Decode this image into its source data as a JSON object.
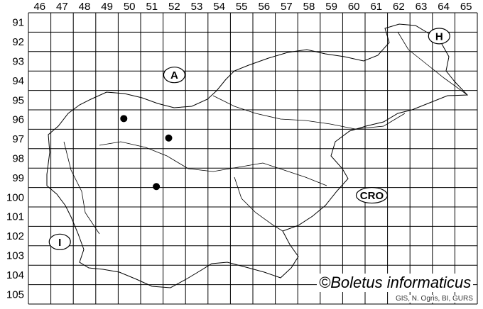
{
  "map": {
    "columns": [
      "46",
      "47",
      "48",
      "49",
      "50",
      "51",
      "52",
      "53",
      "54",
      "55",
      "56",
      "57",
      "58",
      "59",
      "60",
      "61",
      "62",
      "63",
      "64",
      "65"
    ],
    "rows": [
      "91",
      "92",
      "93",
      "94",
      "95",
      "96",
      "97",
      "98",
      "99",
      "100",
      "101",
      "102",
      "103",
      "104",
      "105"
    ],
    "country_labels": [
      {
        "text": "A",
        "col": 52.5,
        "row": 94.2
      },
      {
        "text": "H",
        "col": 64.3,
        "row": 92.2
      },
      {
        "text": "CRO",
        "col": 61.3,
        "row": 100.4
      },
      {
        "text": "I",
        "col": 47.4,
        "row": 102.8
      }
    ],
    "records": [
      {
        "col": 50,
        "row": 96,
        "dx": 0.25,
        "dy": 0.45
      },
      {
        "col": 52,
        "row": 97,
        "dx": 0.25,
        "dy": 0.45
      },
      {
        "col": 51,
        "row": 99,
        "dx": 0.7,
        "dy": 0.95
      }
    ],
    "credit": "©Boletus informaticus",
    "source": "GIS, N. Ogris, BI, GURS",
    "dot_color": "#000000",
    "line_color": "#000000"
  }
}
